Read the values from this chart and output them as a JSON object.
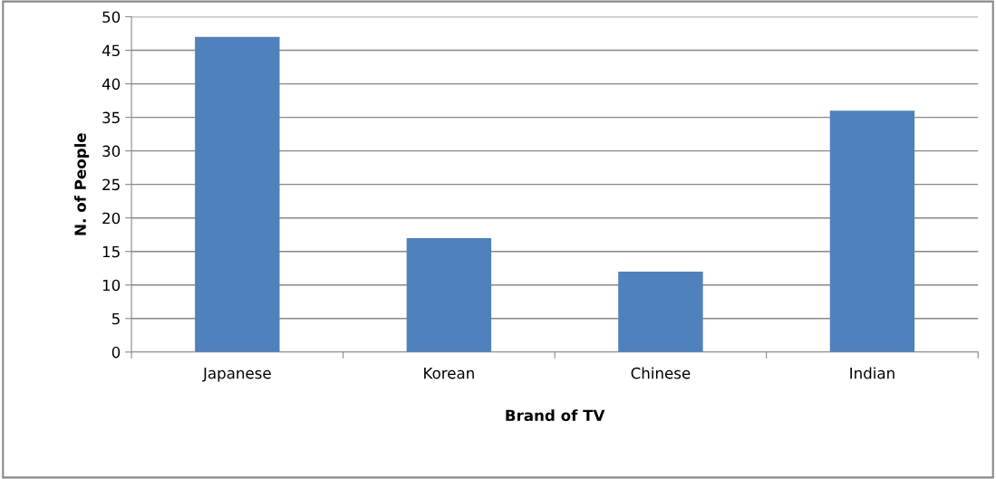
{
  "chart_data": {
    "type": "bar",
    "xlabel": "Brand of TV",
    "ylabel": "N. of People",
    "categories": [
      "Japanese",
      "Korean",
      "Chinese",
      "Indian"
    ],
    "values": [
      47,
      17,
      12,
      36
    ],
    "color": "#4f81bd",
    "ylim": [
      0,
      50
    ],
    "yticks": [
      0,
      5,
      10,
      15,
      20,
      25,
      30,
      35,
      40,
      45,
      50
    ],
    "grid": "y"
  }
}
